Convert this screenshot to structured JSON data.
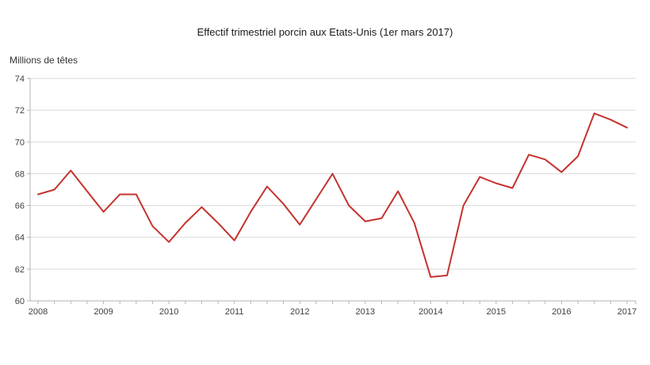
{
  "chart_data": {
    "type": "line",
    "title": "Effectif trimestriel porcin aux Etats-Unis (1er mars 2017)",
    "ylabel": "Millions de têtes",
    "xlabel": "",
    "x_tick_labels": [
      "2008",
      "2009",
      "2010",
      "2011",
      "2012",
      "2013",
      "20014",
      "2015",
      "2016",
      "2017"
    ],
    "points_per_year": 4,
    "x_start": "2008-Q1",
    "x_end": "2017-Q1",
    "values": [
      66.7,
      67.0,
      68.2,
      66.9,
      65.6,
      66.7,
      66.7,
      64.7,
      63.7,
      64.9,
      65.9,
      64.9,
      63.8,
      65.6,
      67.2,
      66.1,
      64.8,
      66.4,
      68.0,
      66.0,
      65.0,
      65.2,
      66.9,
      64.9,
      61.5,
      61.6,
      66.0,
      67.8,
      67.4,
      67.1,
      69.2,
      68.9,
      68.1,
      69.1,
      71.8,
      71.4,
      70.9
    ],
    "ylim": [
      60,
      74
    ],
    "ytick_step": 2,
    "grid": "horizontal",
    "legend": "none",
    "colors": {
      "line": "#c4332e",
      "grid": "#d9d9d9",
      "axis": "#b3b3b3",
      "tick_text": "#3f3f3f",
      "title_text": "#1a1a1a",
      "background": "#ffffff"
    }
  }
}
